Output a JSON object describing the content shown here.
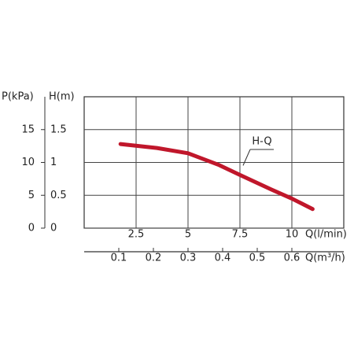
{
  "chart_data": {
    "type": "line",
    "ylabel": "P(kPa)",
    "y2label": "H(m)",
    "xlabel": "Q(l/min)",
    "x2label": "Q(m³/h)",
    "xlim": [
      0,
      12.5
    ],
    "xticks": [
      2.5,
      5,
      7.5,
      10
    ],
    "x2lim": [
      0,
      0.75
    ],
    "x2ticks": [
      0.1,
      0.2,
      0.3,
      0.4,
      0.5,
      0.6
    ],
    "ylim": [
      0,
      20
    ],
    "yticks": [
      0,
      5,
      10,
      15
    ],
    "y2lim": [
      0,
      2
    ],
    "y2ticks": [
      0,
      0.5,
      1,
      1.5
    ],
    "grid": true,
    "series": [
      {
        "name": "H-Q",
        "color": "#c0172b",
        "x": [
          1.75,
          3.5,
          5,
          6.5,
          7.5,
          9,
          10,
          11
        ],
        "values": [
          12.8,
          12.2,
          11.4,
          9.6,
          8.1,
          5.9,
          4.5,
          2.9
        ]
      }
    ]
  }
}
